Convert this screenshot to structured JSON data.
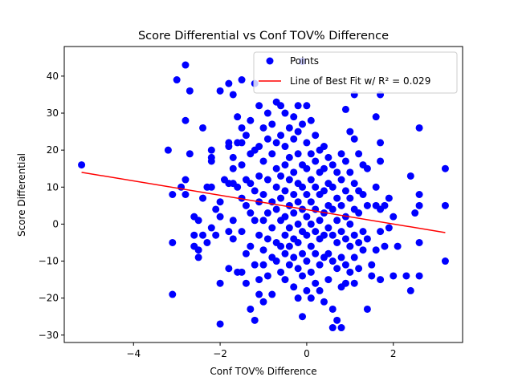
{
  "chart_data": {
    "type": "scatter",
    "title": "Score Differential vs Conf TOV% Difference",
    "xlabel": "Conf TOV% Difference",
    "ylabel": "Score Differential",
    "xlim": [
      -5.6,
      3.6
    ],
    "ylim": [
      -32,
      48
    ],
    "xticks": [
      -4,
      -2,
      0,
      2
    ],
    "yticks": [
      -30,
      -20,
      -10,
      0,
      10,
      20,
      30,
      40
    ],
    "grid": false,
    "legend_position": "top-right",
    "colors": {
      "points": "#0000ff",
      "fit_line": "#ff0000"
    },
    "series": [
      {
        "name": "Points",
        "kind": "scatter",
        "points": [
          [
            -5.2,
            16
          ],
          [
            -3.2,
            20
          ],
          [
            -3.1,
            -5
          ],
          [
            -3.1,
            -19
          ],
          [
            -3.1,
            8
          ],
          [
            -3.0,
            39
          ],
          [
            -2.9,
            10
          ],
          [
            -2.8,
            43
          ],
          [
            -2.8,
            28
          ],
          [
            -2.8,
            12
          ],
          [
            -2.8,
            8
          ],
          [
            -2.7,
            36
          ],
          [
            -2.7,
            19
          ],
          [
            -2.6,
            2
          ],
          [
            -2.6,
            -3
          ],
          [
            -2.6,
            -6
          ],
          [
            -2.5,
            1
          ],
          [
            -2.5,
            -7
          ],
          [
            -2.5,
            -9
          ],
          [
            -2.4,
            26
          ],
          [
            -2.4,
            7
          ],
          [
            -2.4,
            -3
          ],
          [
            -2.3,
            -5
          ],
          [
            -2.3,
            10
          ],
          [
            -2.2,
            20
          ],
          [
            -2.2,
            18
          ],
          [
            -2.2,
            17
          ],
          [
            -2.2,
            10
          ],
          [
            -2.2,
            -1
          ],
          [
            -2.1,
            4
          ],
          [
            -2.1,
            -3
          ],
          [
            -2.0,
            36
          ],
          [
            -2.0,
            6
          ],
          [
            -2.0,
            2
          ],
          [
            -2.0,
            -16
          ],
          [
            -2.0,
            -27
          ],
          [
            -1.9,
            12
          ],
          [
            -1.8,
            38
          ],
          [
            -1.8,
            22
          ],
          [
            -1.8,
            21
          ],
          [
            -1.8,
            11
          ],
          [
            -1.8,
            -2
          ],
          [
            -1.8,
            -12
          ],
          [
            -1.7,
            35
          ],
          [
            -1.7,
            18
          ],
          [
            -1.7,
            15
          ],
          [
            -1.7,
            11
          ],
          [
            -1.7,
            1
          ],
          [
            -1.7,
            -4
          ],
          [
            -1.6,
            29
          ],
          [
            -1.6,
            22
          ],
          [
            -1.6,
            10
          ],
          [
            -1.6,
            -13
          ],
          [
            -1.5,
            39
          ],
          [
            -1.5,
            26
          ],
          [
            -1.5,
            22
          ],
          [
            -1.5,
            16
          ],
          [
            -1.5,
            7
          ],
          [
            -1.5,
            -2
          ],
          [
            -1.5,
            -13
          ],
          [
            -1.4,
            24
          ],
          [
            -1.4,
            12
          ],
          [
            -1.4,
            5
          ],
          [
            -1.4,
            -8
          ],
          [
            -1.4,
            -16
          ],
          [
            -1.3,
            28
          ],
          [
            -1.3,
            19
          ],
          [
            -1.3,
            11
          ],
          [
            -1.3,
            3
          ],
          [
            -1.3,
            -6
          ],
          [
            -1.3,
            -23
          ],
          [
            -1.2,
            38
          ],
          [
            -1.2,
            20
          ],
          [
            -1.2,
            9
          ],
          [
            -1.2,
            1
          ],
          [
            -1.2,
            -11
          ],
          [
            -1.2,
            -26
          ],
          [
            -1.1,
            32
          ],
          [
            -1.1,
            21
          ],
          [
            -1.1,
            13
          ],
          [
            -1.1,
            6
          ],
          [
            -1.1,
            -3
          ],
          [
            -1.1,
            -15
          ],
          [
            -1.1,
            -19
          ],
          [
            -1.0,
            26
          ],
          [
            -1.0,
            17
          ],
          [
            -1.0,
            8
          ],
          [
            -1.0,
            1
          ],
          [
            -1.0,
            -7
          ],
          [
            -1.0,
            -11
          ],
          [
            -1.0,
            -21
          ],
          [
            -0.9,
            30
          ],
          [
            -0.9,
            23
          ],
          [
            -0.9,
            12
          ],
          [
            -0.9,
            3
          ],
          [
            -0.9,
            -4
          ],
          [
            -0.9,
            -14
          ],
          [
            -0.8,
            27
          ],
          [
            -0.8,
            19
          ],
          [
            -0.8,
            6
          ],
          [
            -0.8,
            -1
          ],
          [
            -0.8,
            -9
          ],
          [
            -0.8,
            -19
          ],
          [
            -0.7,
            33
          ],
          [
            -0.7,
            22
          ],
          [
            -0.7,
            15
          ],
          [
            -0.7,
            10
          ],
          [
            -0.7,
            4
          ],
          [
            -0.7,
            -5
          ],
          [
            -0.7,
            -10
          ],
          [
            -0.6,
            32
          ],
          [
            -0.6,
            24
          ],
          [
            -0.6,
            13
          ],
          [
            -0.6,
            7
          ],
          [
            -0.6,
            1
          ],
          [
            -0.6,
            -6
          ],
          [
            -0.6,
            -13
          ],
          [
            -0.5,
            30
          ],
          [
            -0.5,
            21
          ],
          [
            -0.5,
            16
          ],
          [
            -0.5,
            9
          ],
          [
            -0.5,
            2
          ],
          [
            -0.5,
            -3
          ],
          [
            -0.5,
            -8
          ],
          [
            -0.5,
            -15
          ],
          [
            -0.4,
            26
          ],
          [
            -0.4,
            18
          ],
          [
            -0.4,
            12
          ],
          [
            -0.4,
            5
          ],
          [
            -0.4,
            -1
          ],
          [
            -0.4,
            -6
          ],
          [
            -0.4,
            -11
          ],
          [
            -0.3,
            29
          ],
          [
            -0.3,
            23
          ],
          [
            -0.3,
            14
          ],
          [
            -0.3,
            8
          ],
          [
            -0.3,
            3
          ],
          [
            -0.3,
            -4
          ],
          [
            -0.3,
            -9
          ],
          [
            -0.3,
            -17
          ],
          [
            -0.2,
            32
          ],
          [
            -0.2,
            25
          ],
          [
            -0.2,
            19
          ],
          [
            -0.2,
            11
          ],
          [
            -0.2,
            6
          ],
          [
            -0.2,
            0
          ],
          [
            -0.2,
            -5
          ],
          [
            -0.2,
            -12
          ],
          [
            -0.2,
            -20
          ],
          [
            -0.1,
            44
          ],
          [
            -0.1,
            27
          ],
          [
            -0.1,
            16
          ],
          [
            -0.1,
            10
          ],
          [
            -0.1,
            4
          ],
          [
            -0.1,
            -2
          ],
          [
            -0.1,
            -8
          ],
          [
            -0.1,
            -14
          ],
          [
            -0.1,
            -25
          ],
          [
            0.0,
            32
          ],
          [
            0.0,
            22
          ],
          [
            0.0,
            15
          ],
          [
            0.0,
            8
          ],
          [
            0.0,
            2
          ],
          [
            0.0,
            -3
          ],
          [
            0.0,
            -10
          ],
          [
            0.0,
            -18
          ],
          [
            0.1,
            28
          ],
          [
            0.1,
            19
          ],
          [
            0.1,
            12
          ],
          [
            0.1,
            6
          ],
          [
            0.1,
            0
          ],
          [
            0.1,
            -6
          ],
          [
            0.1,
            -13
          ],
          [
            0.1,
            -20
          ],
          [
            0.2,
            24
          ],
          [
            0.2,
            17
          ],
          [
            0.2,
            10
          ],
          [
            0.2,
            4
          ],
          [
            0.2,
            -2
          ],
          [
            0.2,
            -8
          ],
          [
            0.2,
            -16
          ],
          [
            0.3,
            20
          ],
          [
            0.3,
            14
          ],
          [
            0.3,
            8
          ],
          [
            0.3,
            1
          ],
          [
            0.3,
            -4
          ],
          [
            0.3,
            -11
          ],
          [
            0.3,
            -18
          ],
          [
            0.4,
            21
          ],
          [
            0.4,
            15
          ],
          [
            0.4,
            9
          ],
          [
            0.4,
            3
          ],
          [
            0.4,
            -3
          ],
          [
            0.4,
            -9
          ],
          [
            0.4,
            -21
          ],
          [
            0.5,
            18
          ],
          [
            0.5,
            11
          ],
          [
            0.5,
            5
          ],
          [
            0.5,
            -1
          ],
          [
            0.5,
            -8
          ],
          [
            0.5,
            -15
          ],
          [
            0.6,
            16
          ],
          [
            0.6,
            10
          ],
          [
            0.6,
            4
          ],
          [
            0.6,
            -3
          ],
          [
            0.6,
            -10
          ],
          [
            0.6,
            -23
          ],
          [
            0.6,
            -28
          ],
          [
            0.7,
            14
          ],
          [
            0.7,
            7
          ],
          [
            0.7,
            1
          ],
          [
            0.7,
            -5
          ],
          [
            0.7,
            -12
          ],
          [
            0.7,
            -26
          ],
          [
            0.8,
            19
          ],
          [
            0.8,
            12
          ],
          [
            0.8,
            5
          ],
          [
            0.8,
            -2
          ],
          [
            0.8,
            -9
          ],
          [
            0.8,
            -17
          ],
          [
            0.8,
            -28
          ],
          [
            0.9,
            31
          ],
          [
            0.9,
            17
          ],
          [
            0.9,
            9
          ],
          [
            0.9,
            2
          ],
          [
            0.9,
            -4
          ],
          [
            0.9,
            -11
          ],
          [
            0.9,
            -16
          ],
          [
            1.0,
            25
          ],
          [
            1.0,
            14
          ],
          [
            1.0,
            7
          ],
          [
            1.0,
            0
          ],
          [
            1.0,
            -6
          ],
          [
            1.0,
            -13
          ],
          [
            1.1,
            35
          ],
          [
            1.1,
            23
          ],
          [
            1.1,
            11
          ],
          [
            1.1,
            4
          ],
          [
            1.1,
            -3
          ],
          [
            1.1,
            -9
          ],
          [
            1.1,
            -16
          ],
          [
            1.2,
            19
          ],
          [
            1.2,
            9
          ],
          [
            1.2,
            3
          ],
          [
            1.2,
            -5
          ],
          [
            1.2,
            -12
          ],
          [
            1.3,
            16
          ],
          [
            1.3,
            8
          ],
          [
            1.3,
            -2
          ],
          [
            1.3,
            -7
          ],
          [
            1.4,
            15
          ],
          [
            1.4,
            5
          ],
          [
            1.4,
            -4
          ],
          [
            1.4,
            -23
          ],
          [
            1.5,
            -11
          ],
          [
            1.5,
            -14
          ],
          [
            1.6,
            29
          ],
          [
            1.6,
            10
          ],
          [
            1.6,
            5
          ],
          [
            1.6,
            -7
          ],
          [
            1.7,
            35
          ],
          [
            1.7,
            22
          ],
          [
            1.7,
            17
          ],
          [
            1.7,
            4
          ],
          [
            1.7,
            -2
          ],
          [
            1.7,
            -15
          ],
          [
            1.8,
            5
          ],
          [
            1.8,
            -6
          ],
          [
            1.9,
            7
          ],
          [
            1.9,
            -1
          ],
          [
            2.0,
            2
          ],
          [
            2.0,
            -14
          ],
          [
            2.1,
            -6
          ],
          [
            2.3,
            -14
          ],
          [
            2.4,
            13
          ],
          [
            2.4,
            -18
          ],
          [
            2.5,
            3
          ],
          [
            2.6,
            26
          ],
          [
            2.6,
            8
          ],
          [
            2.6,
            5
          ],
          [
            2.6,
            -5
          ],
          [
            2.6,
            -14
          ],
          [
            3.2,
            15
          ],
          [
            3.2,
            5
          ],
          [
            3.2,
            -10
          ]
        ]
      },
      {
        "name": "Line of Best Fit w/ R² = 0.029",
        "kind": "line",
        "points": [
          [
            -5.2,
            14
          ],
          [
            3.2,
            -2.3
          ]
        ]
      }
    ]
  }
}
